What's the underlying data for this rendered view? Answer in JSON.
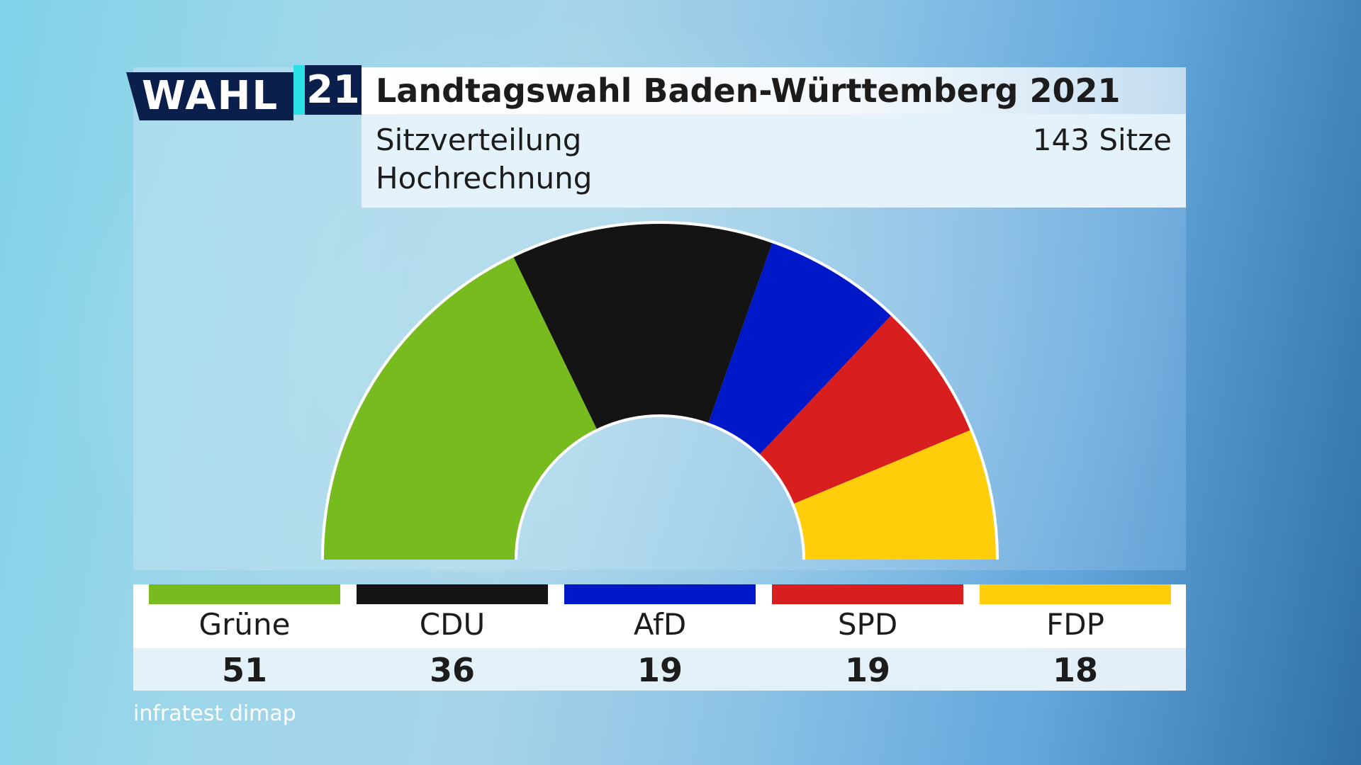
{
  "logo": {
    "wahl": "WAHL",
    "year": "21"
  },
  "header": {
    "title": "Landtagswahl Baden-Württemberg 2021",
    "subtitle1": "Sitzverteilung",
    "subtitle2": "Hochrechnung",
    "seats": "143 Sitze"
  },
  "chart_data": {
    "type": "pie",
    "style": "semicircle-parliament",
    "total_seats": 143,
    "categories": [
      "Grüne",
      "CDU",
      "AfD",
      "SPD",
      "FDP"
    ],
    "values": [
      51,
      36,
      19,
      19,
      18
    ],
    "colors": [
      "#78bb1e",
      "#141414",
      "#0019c8",
      "#d81e1e",
      "#ffcd0a"
    ]
  },
  "legend": [
    {
      "party": "Grüne",
      "value": "51",
      "color": "#78bb1e"
    },
    {
      "party": "CDU",
      "value": "36",
      "color": "#141414"
    },
    {
      "party": "AfD",
      "value": "19",
      "color": "#0019c8"
    },
    {
      "party": "SPD",
      "value": "19",
      "color": "#d81e1e"
    },
    {
      "party": "FDP",
      "value": "18",
      "color": "#ffcd0a"
    }
  ],
  "source": "infratest dimap"
}
